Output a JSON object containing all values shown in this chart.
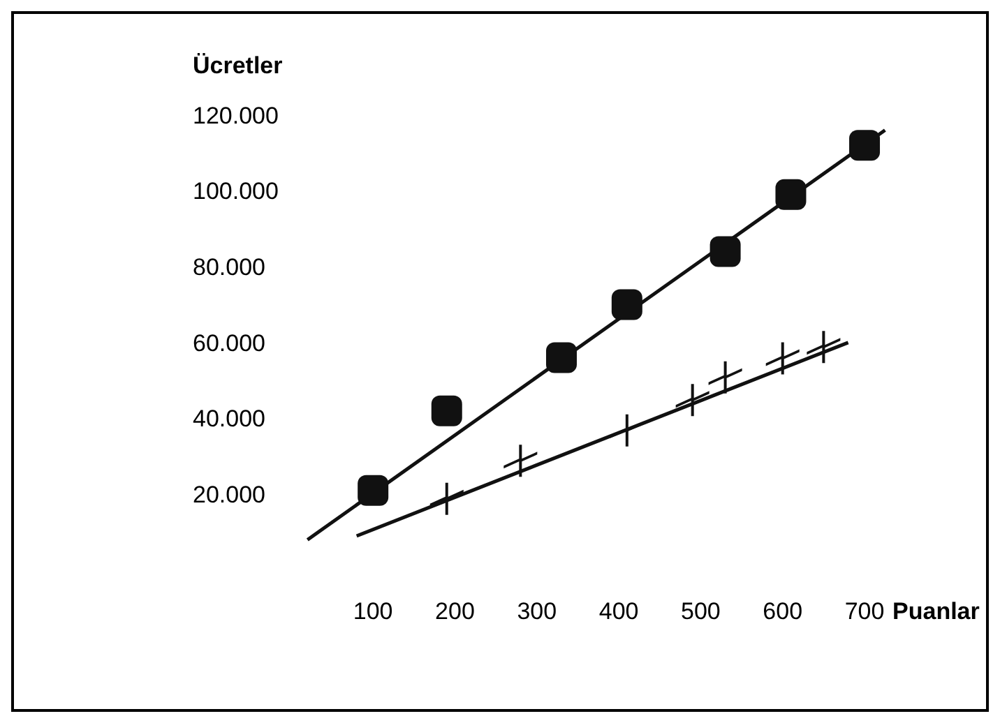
{
  "chart_data": {
    "type": "scatter",
    "xlabel": "Puanlar",
    "ylabel": "Ücretler",
    "xlim": [
      -340,
      850
    ],
    "ylim": [
      -37000,
      147000
    ],
    "xticks": [
      100,
      200,
      300,
      400,
      500,
      600,
      700
    ],
    "yticks": [
      {
        "value": 20000,
        "label": "20.000"
      },
      {
        "value": 40000,
        "label": "40.000"
      },
      {
        "value": 60000,
        "label": "60.000"
      },
      {
        "value": 80000,
        "label": "80.000"
      },
      {
        "value": 100000,
        "label": "100.000"
      },
      {
        "value": 120000,
        "label": "120.000"
      }
    ],
    "grid": false,
    "series": [
      {
        "marker": "square",
        "color": "#111111",
        "x": [
          100,
          190,
          330,
          410,
          530,
          610,
          700
        ],
        "values": [
          21000,
          42000,
          56000,
          70000,
          84000,
          99000,
          112000
        ]
      },
      {
        "marker": "cross",
        "color": "#111111",
        "x": [
          190,
          280,
          410,
          490,
          530,
          600,
          650
        ],
        "values": [
          19000,
          29000,
          37000,
          45000,
          51000,
          56000,
          59000
        ]
      },
      {
        "type": "line",
        "marker": "none",
        "color": "#111111",
        "x": [
          20,
          725
        ],
        "values": [
          8000,
          116000
        ]
      },
      {
        "type": "line",
        "marker": "none",
        "color": "#111111",
        "x": [
          80,
          680
        ],
        "values": [
          9000,
          60000
        ]
      }
    ]
  }
}
